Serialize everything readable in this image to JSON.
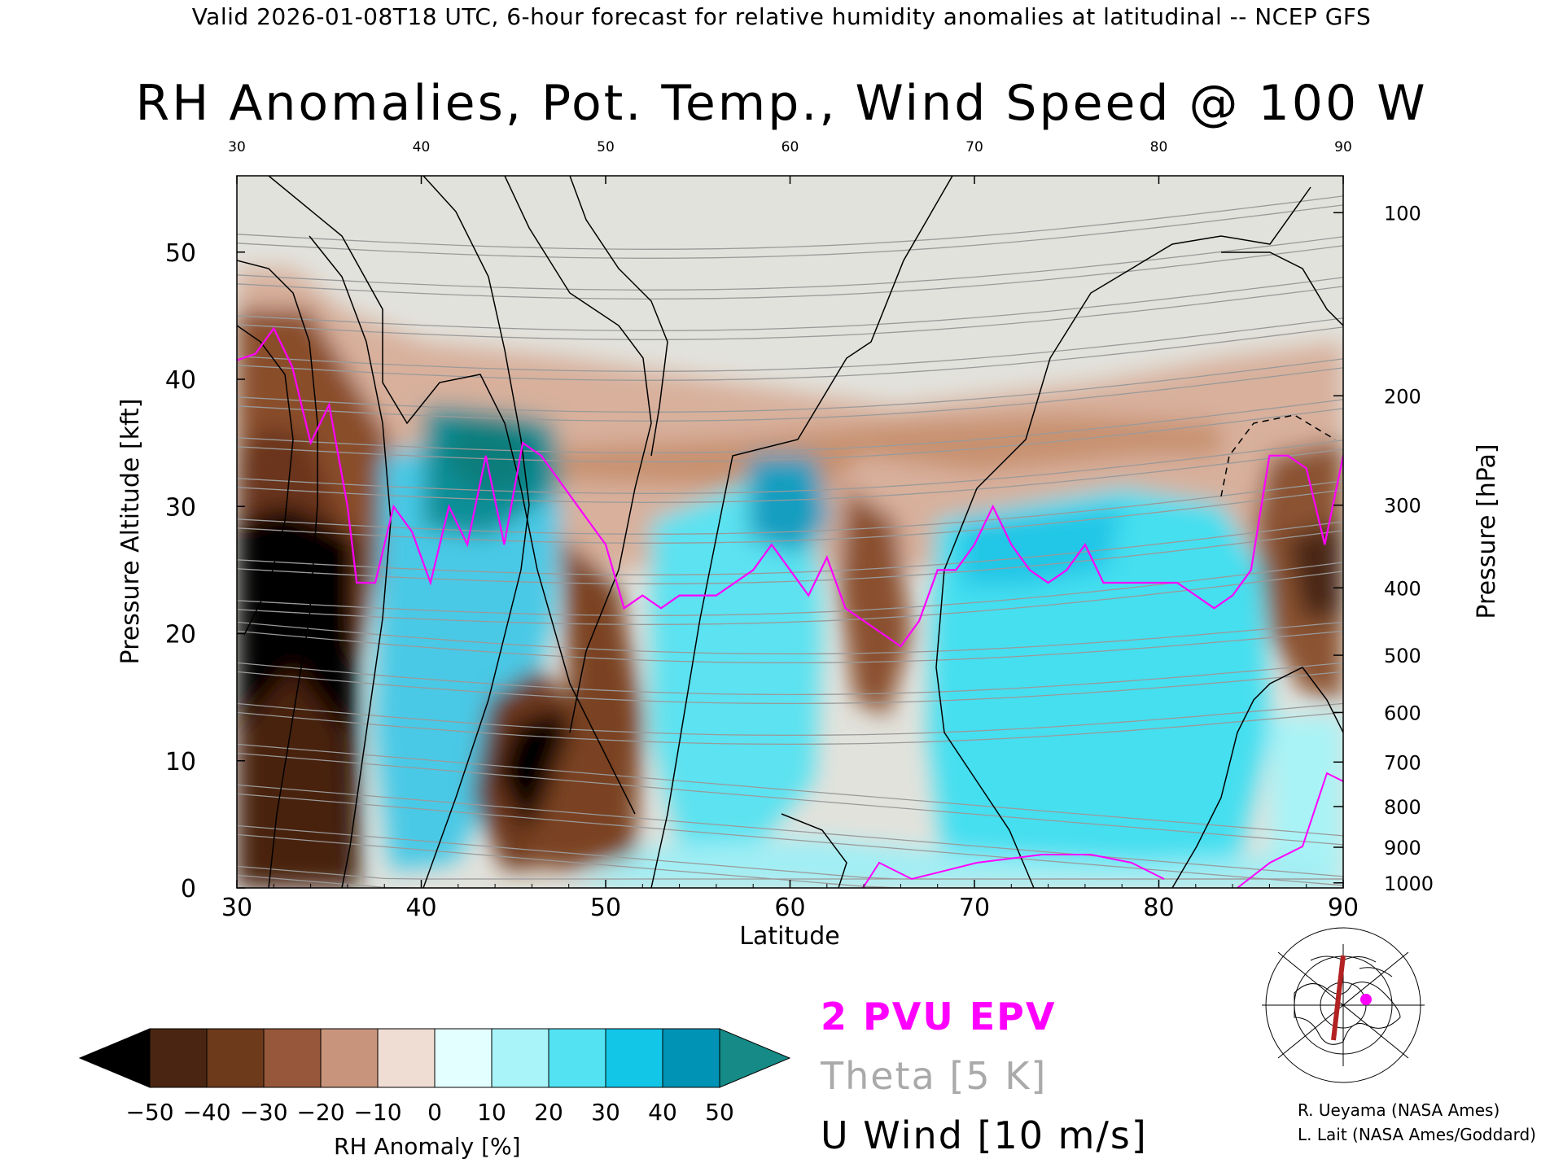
{
  "header": {
    "valid_line": "Valid 2026-01-08T18 UTC, 6-hour forecast for relative humidity anomalies at latitudinal -- NCEP GFS",
    "title": "RH Anomalies, Pot. Temp., Wind Speed @ 100 W"
  },
  "colors": {
    "epv": "#ff00ff",
    "theta": "#aaaaaa",
    "uwind": "#000000",
    "map_marker": "#ff00ff",
    "map_section_line": "#b22222"
  },
  "chart_data": {
    "type": "heatmap",
    "title": "RH Anomalies, Pot. Temp., Wind Speed @ 100 W",
    "xlabel": "Latitude",
    "ylabel": "Pressure Altitude [kft]",
    "y2label": "Pressure [hPa]",
    "xlim": [
      30,
      90
    ],
    "ylim": [
      0,
      56
    ],
    "x_ticks": [
      30,
      40,
      50,
      60,
      70,
      80,
      90
    ],
    "y_ticks": [
      0,
      10,
      20,
      30,
      40,
      50
    ],
    "pressure_ticks": [
      {
        "label": "100",
        "kft": 53.1
      },
      {
        "label": "200",
        "kft": 38.7
      },
      {
        "label": "300",
        "kft": 30.1
      },
      {
        "label": "400",
        "kft": 23.6
      },
      {
        "label": "500",
        "kft": 18.3
      },
      {
        "label": "600",
        "kft": 13.8
      },
      {
        "label": "700",
        "kft": 9.9
      },
      {
        "label": "800",
        "kft": 6.4
      },
      {
        "label": "900",
        "kft": 3.2
      },
      {
        "label": "1000",
        "kft": 0.4
      }
    ],
    "rh_anomaly_colorbar": {
      "label": "RH Anomaly [%]",
      "levels": [
        -50,
        -40,
        -30,
        -20,
        -10,
        0,
        10,
        20,
        30,
        40,
        50
      ],
      "tick_labels": [
        "−50",
        "−40",
        "−30",
        "−20",
        "−10",
        "0",
        "10",
        "20",
        "30",
        "40",
        "50"
      ],
      "colors": [
        "#000000",
        "#4a2612",
        "#6e3a1c",
        "#96573a",
        "#c8957c",
        "#efdcd2",
        "#e4ffff",
        "#a8f4f8",
        "#52e2f2",
        "#12c6e8",
        "#0093b5",
        "#158a86"
      ]
    },
    "rh_regions": [
      {
        "name": "upper-stratosphere",
        "anomaly": 0,
        "color": "#e2e2dc"
      },
      {
        "name": "dry-30N-lower",
        "lat": [
          30,
          36
        ],
        "kft": [
          2,
          24
        ],
        "anomaly": -50
      },
      {
        "name": "moist-42N-upper",
        "lat": [
          40,
          48
        ],
        "kft": [
          28,
          36
        ],
        "anomaly": 45
      },
      {
        "name": "dry-46N-lower",
        "lat": [
          44,
          49
        ],
        "kft": [
          4,
          14
        ],
        "anomaly": -50
      },
      {
        "name": "moist-70-84N",
        "lat": [
          68,
          84
        ],
        "kft": [
          4,
          26
        ],
        "anomaly": 25
      },
      {
        "name": "dry-88N",
        "lat": [
          86,
          90
        ],
        "kft": [
          16,
          32
        ],
        "anomaly": -30
      }
    ],
    "epv_2pvu": {
      "name": "2 PVU EPV",
      "points": [
        [
          30,
          41.5
        ],
        [
          31,
          42
        ],
        [
          32,
          44
        ],
        [
          33,
          41
        ],
        [
          34,
          35
        ],
        [
          35,
          38
        ],
        [
          36,
          30
        ],
        [
          36.5,
          24
        ],
        [
          37.5,
          24
        ],
        [
          38.5,
          30
        ],
        [
          39.5,
          28
        ],
        [
          40.5,
          24
        ],
        [
          41.5,
          30
        ],
        [
          42.5,
          27
        ],
        [
          43.5,
          34
        ],
        [
          44.5,
          27
        ],
        [
          45.5,
          35
        ],
        [
          46.5,
          34
        ],
        [
          47.5,
          32
        ],
        [
          48.5,
          30
        ],
        [
          50,
          27
        ],
        [
          51,
          22
        ],
        [
          52,
          23
        ],
        [
          53,
          22
        ],
        [
          54,
          23
        ],
        [
          56,
          23
        ],
        [
          58,
          25
        ],
        [
          59,
          27
        ],
        [
          60,
          25
        ],
        [
          61,
          23
        ],
        [
          62,
          26
        ],
        [
          63,
          22
        ],
        [
          64,
          21
        ],
        [
          65,
          20
        ],
        [
          66,
          19
        ],
        [
          67,
          21
        ],
        [
          68,
          25
        ],
        [
          69,
          25
        ],
        [
          70,
          27
        ],
        [
          71,
          30
        ],
        [
          72,
          27
        ],
        [
          73,
          25
        ],
        [
          74,
          24
        ],
        [
          75,
          25
        ],
        [
          76,
          27
        ],
        [
          77,
          24
        ],
        [
          78,
          24
        ],
        [
          80,
          24
        ],
        [
          81,
          24
        ],
        [
          82,
          23
        ],
        [
          83,
          22
        ],
        [
          84,
          23
        ],
        [
          85,
          25
        ],
        [
          86,
          34
        ],
        [
          87,
          34
        ],
        [
          88,
          33
        ],
        [
          89,
          27
        ],
        [
          90,
          34
        ]
      ]
    },
    "theta_levels_K": [
      260,
      270,
      280,
      290,
      300,
      310,
      320,
      330,
      340,
      350,
      360,
      370,
      380,
      390,
      400,
      410,
      420
    ],
    "u_wind_levels_ms": [
      0,
      10,
      20,
      30,
      40
    ]
  },
  "legend": {
    "epv_label": "2 PVU EPV",
    "theta_label": "Theta [5 K]",
    "uwind_label": "U Wind [10 m/s]"
  },
  "credits": {
    "line1": "R. Ueyama (NASA Ames)",
    "line2": "L. Lait (NASA Ames/Goddard)"
  }
}
